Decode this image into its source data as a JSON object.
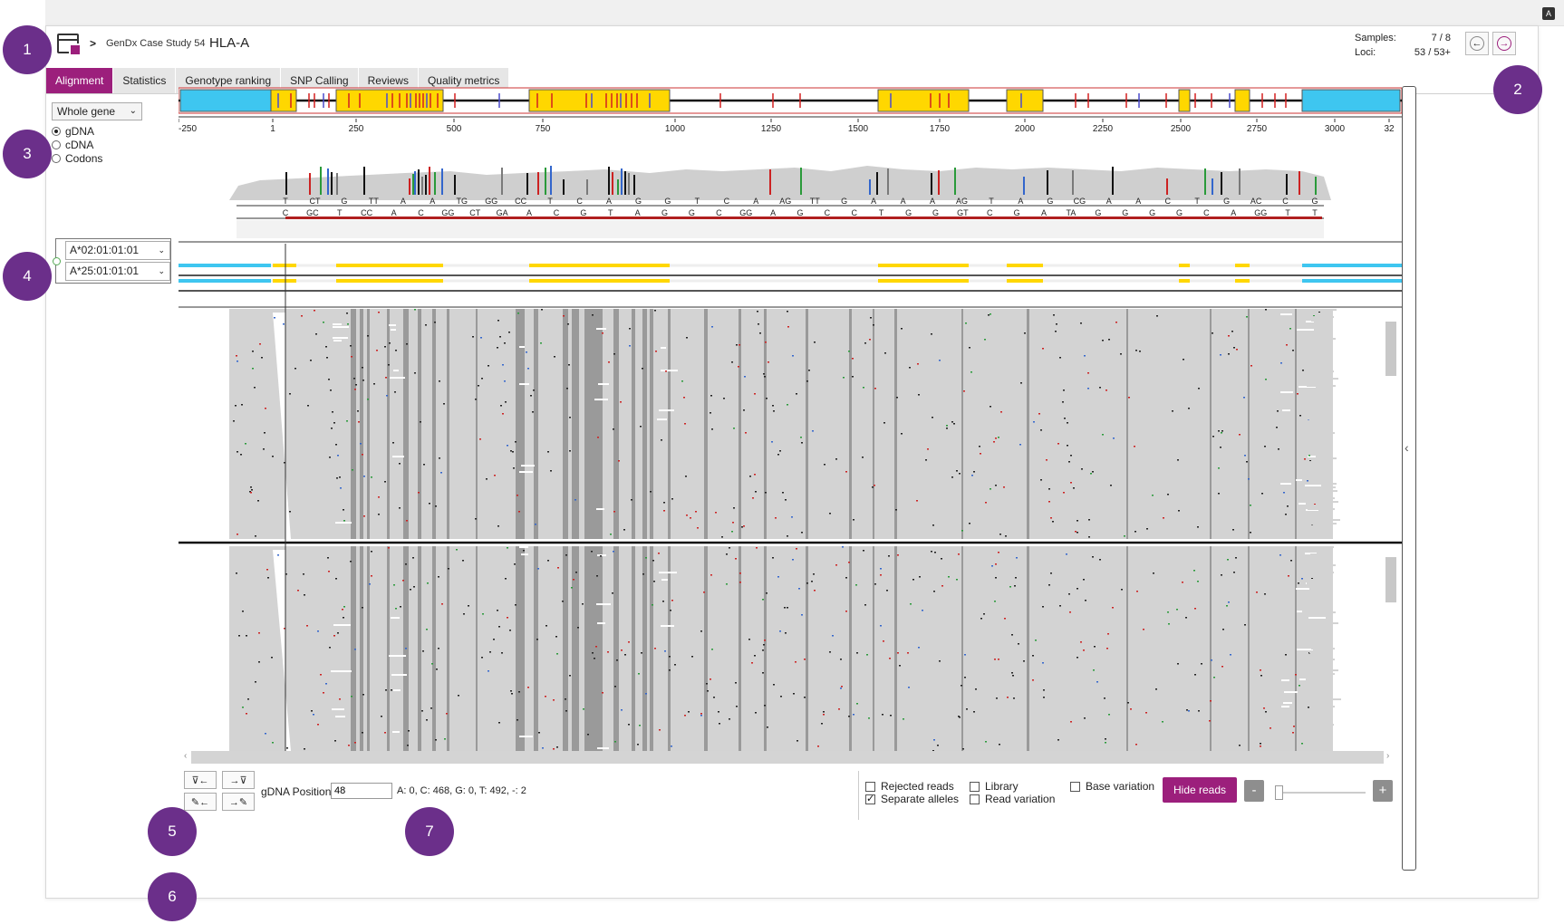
{
  "window": {
    "translate_icon": "translate-icon"
  },
  "header": {
    "breadcrumb_sep": ">",
    "project": "GenDx Case Study 54",
    "locus": "HLA-A",
    "samples_label": "Samples:",
    "samples_value": "7 / 8",
    "loci_label": "Loci:",
    "loci_value": "53 / 53+",
    "prev_icon": "arrow-left-circle-icon",
    "next_icon": "arrow-right-circle-icon"
  },
  "tabs": [
    "Alignment",
    "Statistics",
    "Genotype ranking",
    "SNP Calling",
    "Reviews",
    "Quality metrics"
  ],
  "active_tab": "Alignment",
  "region_select": {
    "value": "Whole gene"
  },
  "coordinate_modes": [
    {
      "label": "gDNA",
      "selected": true
    },
    {
      "label": "cDNA",
      "selected": false
    },
    {
      "label": "Codons",
      "selected": false
    }
  ],
  "ruler": {
    "ticks": [
      "-250",
      "1",
      "250",
      "500",
      "750",
      "1000",
      "1250",
      "1500",
      "1750",
      "2000",
      "2250",
      "2500",
      "2750",
      "3000",
      "32"
    ]
  },
  "gene_map": {
    "colors": {
      "utr": "#3ec6f0",
      "exon": "#ffd700",
      "backbone": "#111111",
      "variant_red": "#d22020",
      "variant_blue": "#4a4acc"
    }
  },
  "consensus": {
    "top_bases": [
      "T",
      "CT",
      "G",
      "TT",
      "A",
      "A",
      "TG",
      "GG",
      "CC",
      "T",
      "C",
      "A",
      "G",
      "G",
      "T",
      "C",
      "A",
      "AG",
      "TT",
      "G",
      "A",
      "A",
      "A",
      "AG",
      "T",
      "A",
      "G",
      "CG",
      "A",
      "A",
      "C",
      "T",
      "G",
      "AC",
      "C",
      "G"
    ],
    "bottom_bases": [
      "C",
      "GC",
      "T",
      "CC",
      "A",
      "C",
      "GG",
      "CT",
      "GA",
      "A",
      "C",
      "G",
      "T",
      "A",
      "G",
      "G",
      "C",
      "GG",
      "A",
      "G",
      "C",
      "C",
      "T",
      "G",
      "G",
      "GT",
      "C",
      "G",
      "A",
      "TA",
      "G",
      "G",
      "G",
      "G",
      "C",
      "A",
      "GG",
      "T",
      "T"
    ]
  },
  "alleles": {
    "allele_1": "A*02:01:01:01",
    "allele_2": "A*25:01:01:01",
    "link_icon": "link-icon"
  },
  "reads": {
    "panels": 2
  },
  "bottom_bar": {
    "tools": [
      {
        "name": "prev-low-quality-button",
        "glyph": "⊽←"
      },
      {
        "name": "next-low-quality-button",
        "glyph": "→⊽"
      },
      {
        "name": "prev-edit-button",
        "glyph": "✎←"
      },
      {
        "name": "next-edit-button",
        "glyph": "→✎"
      }
    ],
    "position_label": "gDNA Position:",
    "position_value": "48",
    "base_counts": "A:  0, C:  468, G:  0, T:  492, -:  2",
    "checkboxes": [
      {
        "label": "Rejected reads",
        "checked": false
      },
      {
        "label": "Separate alleles",
        "checked": true
      },
      {
        "label": "Library",
        "checked": false
      },
      {
        "label": "Read variation",
        "checked": false
      },
      {
        "label": "Base variation",
        "checked": false
      }
    ],
    "hide_reads": "Hide reads",
    "zoom_minus": "-",
    "zoom_plus": "+"
  },
  "callouts": [
    "1",
    "2",
    "3",
    "4",
    "5",
    "6",
    "7"
  ],
  "colors": {
    "accent": "#9c1f7c",
    "callout": "#6b2f8a"
  }
}
